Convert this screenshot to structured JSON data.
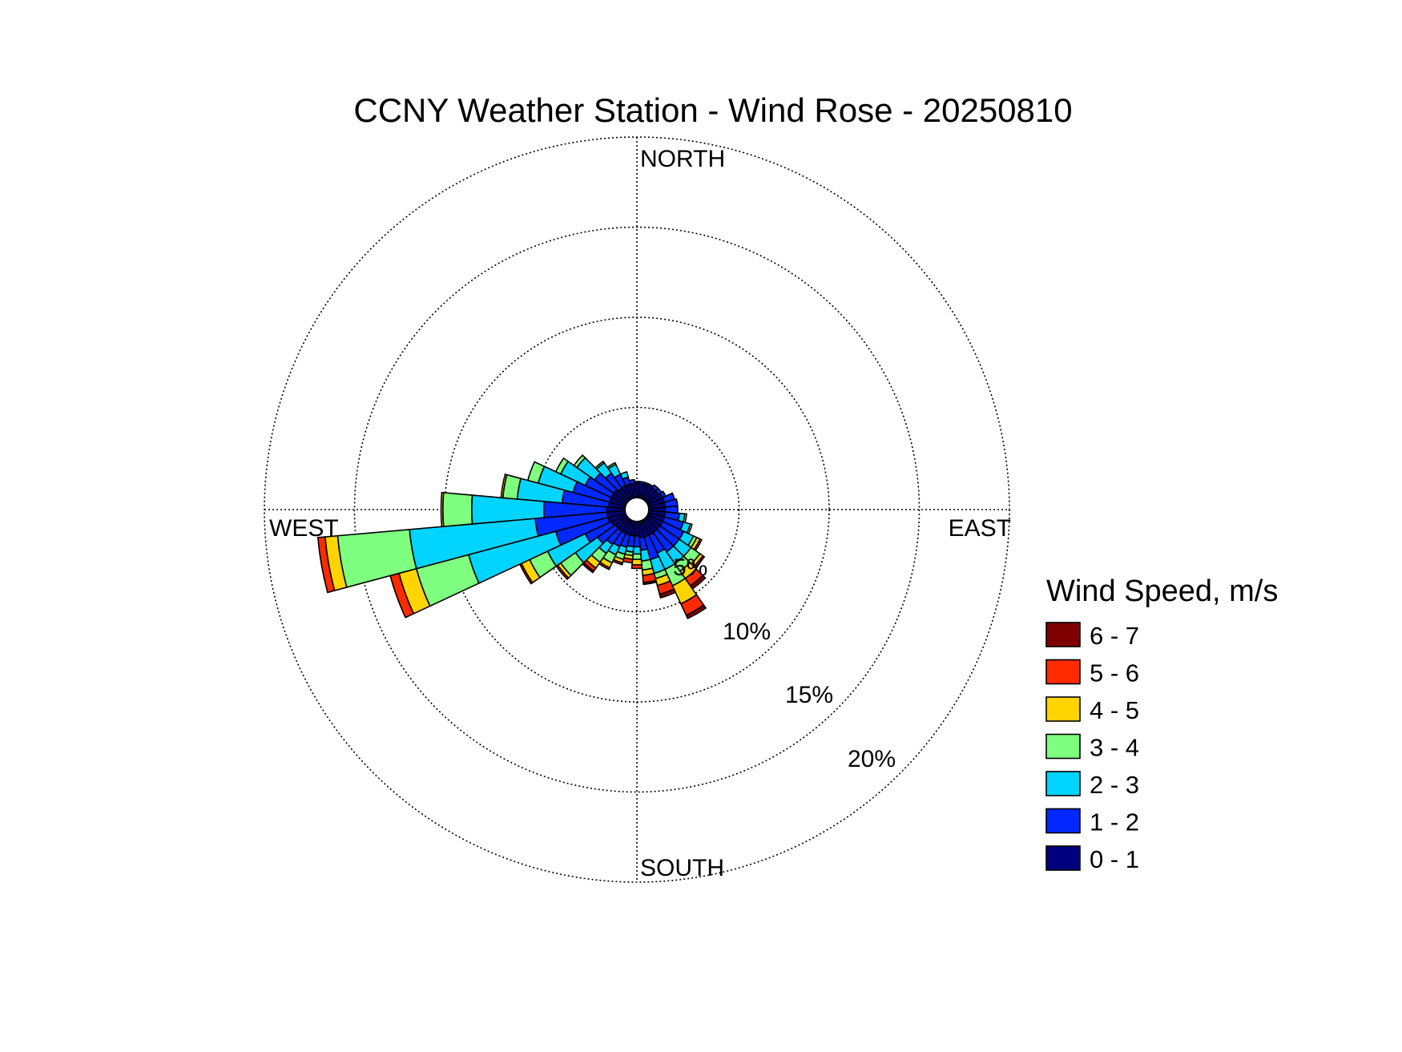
{
  "title": "CCNY Weather Station - Wind Rose - 20250810",
  "directions": {
    "north": "NORTH",
    "south": "SOUTH",
    "east": "EAST",
    "west": "WEST"
  },
  "radial_labels": [
    "5%",
    "10%",
    "15%",
    "20%"
  ],
  "legend": {
    "title": "Wind Speed, m/s",
    "entries": [
      {
        "label": "6 - 7",
        "color": "#7f0000"
      },
      {
        "label": "5 - 6",
        "color": "#ff2a00"
      },
      {
        "label": "4 - 5",
        "color": "#ffd400"
      },
      {
        "label": "3 - 4",
        "color": "#7fff7f"
      },
      {
        "label": "2 - 3",
        "color": "#00d4ff"
      },
      {
        "label": "1 - 2",
        "color": "#0028ff"
      },
      {
        "label": "0 - 1",
        "color": "#00007f"
      }
    ]
  },
  "chart_data": {
    "type": "wind_rose",
    "title": "CCNY Weather Station - Wind Rose - 20250810",
    "radial_unit": "percent",
    "rlim": [
      0,
      20
    ],
    "radial_ticks": [
      5,
      10,
      15,
      20
    ],
    "grid": true,
    "legend_position": "right",
    "bins": [
      "0 - 1",
      "1 - 2",
      "2 - 3",
      "3 - 4",
      "4 - 5",
      "5 - 6",
      "6 - 7"
    ],
    "directions_deg": [
      0,
      10,
      20,
      30,
      40,
      50,
      60,
      70,
      80,
      90,
      100,
      110,
      120,
      130,
      140,
      150,
      160,
      170,
      180,
      190,
      200,
      210,
      220,
      230,
      240,
      250,
      260,
      270,
      280,
      290,
      300,
      310,
      320,
      330,
      340,
      350
    ],
    "cumulative_percent": [
      [
        0.8,
        0.9,
        0.9,
        0.9,
        0.9,
        0.9,
        0.9
      ],
      [
        0.8,
        0.9,
        0.9,
        0.9,
        0.9,
        0.9,
        0.9
      ],
      [
        0.8,
        0.9,
        0.9,
        0.9,
        0.9,
        0.9,
        0.9
      ],
      [
        0.8,
        0.9,
        0.9,
        0.9,
        0.9,
        0.9,
        0.9
      ],
      [
        0.8,
        1.0,
        1.0,
        1.0,
        1.0,
        1.0,
        1.0
      ],
      [
        0.8,
        1.0,
        1.0,
        1.0,
        1.0,
        1.0,
        1.0
      ],
      [
        0.9,
        1.1,
        1.1,
        1.1,
        1.1,
        1.1,
        1.1
      ],
      [
        0.9,
        1.5,
        1.5,
        1.5,
        1.5,
        1.5,
        1.5
      ],
      [
        0.9,
        1.6,
        1.6,
        1.6,
        1.6,
        1.6,
        1.6
      ],
      [
        0.9,
        1.6,
        1.6,
        1.6,
        1.6,
        1.6,
        1.6
      ],
      [
        0.9,
        1.7,
        2.0,
        2.1,
        2.1,
        2.1,
        2.1
      ],
      [
        0.9,
        2.0,
        2.4,
        2.5,
        2.5,
        2.5,
        2.5
      ],
      [
        0.9,
        2.2,
        2.8,
        3.0,
        3.2,
        3.3,
        3.3
      ],
      [
        0.9,
        2.2,
        3.0,
        3.6,
        3.8,
        3.9,
        3.9
      ],
      [
        0.9,
        2.2,
        3.0,
        3.5,
        4.0,
        4.5,
        4.7
      ],
      [
        0.9,
        2.0,
        3.0,
        4.0,
        5.1,
        5.8,
        6.0
      ],
      [
        0.9,
        2.2,
        3.0,
        3.3,
        3.7,
        4.2,
        4.4
      ],
      [
        0.9,
        1.6,
        2.2,
        2.7,
        3.0,
        3.4,
        3.5
      ],
      [
        0.8,
        1.4,
        1.8,
        2.1,
        2.4,
        2.6,
        2.6
      ],
      [
        0.8,
        1.4,
        1.7,
        1.9,
        2.1,
        2.3,
        2.3
      ],
      [
        0.8,
        1.5,
        1.9,
        2.2,
        2.4,
        2.5,
        2.5
      ],
      [
        0.8,
        1.6,
        2.1,
        2.6,
        2.9,
        3.0,
        3.0
      ],
      [
        0.8,
        1.7,
        2.3,
        2.9,
        3.3,
        3.5,
        3.6
      ],
      [
        0.8,
        2.0,
        3.5,
        4.5,
        4.7,
        4.8,
        4.8
      ],
      [
        0.9,
        2.5,
        4.8,
        5.9,
        6.4,
        6.5,
        6.5
      ],
      [
        1.0,
        4.0,
        9.0,
        12.0,
        13.0,
        13.5,
        13.5
      ],
      [
        1.0,
        5.0,
        12.0,
        16.0,
        16.7,
        17.1,
        17.1
      ],
      [
        1.0,
        4.5,
        8.5,
        10.1,
        10.2,
        10.2,
        10.2
      ],
      [
        0.9,
        3.5,
        6.0,
        6.8,
        6.9,
        6.9,
        6.9
      ],
      [
        0.9,
        3.0,
        5.0,
        5.6,
        5.6,
        5.6,
        5.6
      ],
      [
        0.9,
        2.5,
        4.0,
        4.3,
        4.3,
        4.3,
        4.3
      ],
      [
        0.9,
        2.2,
        3.4,
        3.6,
        3.6,
        3.6,
        3.6
      ],
      [
        0.8,
        1.8,
        2.5,
        2.6,
        2.6,
        2.6,
        2.6
      ],
      [
        0.8,
        1.5,
        2.1,
        2.2,
        2.2,
        2.2,
        2.2
      ],
      [
        0.8,
        1.2,
        1.5,
        1.5,
        1.5,
        1.5,
        1.5
      ],
      [
        0.8,
        1.0,
        1.0,
        1.0,
        1.0,
        1.0,
        1.0
      ]
    ]
  }
}
